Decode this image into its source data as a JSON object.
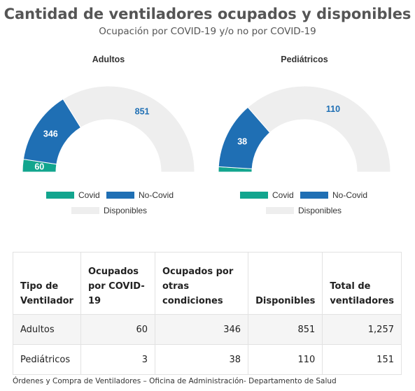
{
  "title": "Cantidad de ventiladores ocupados y disponibles",
  "subtitle": "Ocupación por COVID-19 y/o no por COVID-19",
  "colors": {
    "covid": "#12a58e",
    "no_covid": "#1f6fb4",
    "disponibles": "#eeeeee"
  },
  "chart_data": [
    {
      "type": "pie",
      "subtype": "semi-donut",
      "title": "Adultos",
      "categories": [
        "Covid",
        "No-Covid",
        "Disponibles"
      ],
      "values": [
        60,
        346,
        851
      ],
      "data_labels": [
        "60",
        "346",
        "851"
      ]
    },
    {
      "type": "pie",
      "subtype": "semi-donut",
      "title": "Pediátricos",
      "categories": [
        "Covid",
        "No-Covid",
        "Disponibles"
      ],
      "values": [
        3,
        38,
        110
      ],
      "data_labels": [
        "",
        "38",
        "110"
      ]
    }
  ],
  "legend": {
    "covid": "Covid",
    "no_covid": "No-Covid",
    "disponibles": "Disponibles"
  },
  "table": {
    "headers": [
      "Tipo de Ventilador",
      "Ocupados por COVID-19",
      "Ocupados por otras condiciones",
      "Disponibles",
      "Total de ventiladores"
    ],
    "rows": [
      [
        "Adultos",
        "60",
        "346",
        "851",
        "1,257"
      ],
      [
        "Pediátricos",
        "3",
        "38",
        "110",
        "151"
      ]
    ]
  },
  "source": "Órdenes y Compra de Ventiladores – Oficina de Administración- Departamento de Salud"
}
